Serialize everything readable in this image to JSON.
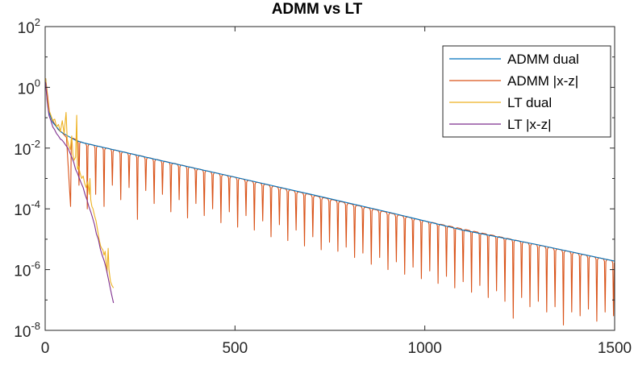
{
  "chart_data": {
    "type": "line",
    "title": "ADMM vs LT",
    "xlabel": "",
    "ylabel": "",
    "xlim": [
      0,
      1500
    ],
    "ylim": [
      1e-08,
      100
    ],
    "yscale": "log",
    "grid": false,
    "legend_position": "top-right",
    "x_ticks": [
      {
        "value": 0,
        "label": "0"
      },
      {
        "value": 500,
        "label": "500"
      },
      {
        "value": 1000,
        "label": "1000"
      },
      {
        "value": 1500,
        "label": "1500"
      }
    ],
    "y_ticks": [
      {
        "value": 100,
        "base": "10",
        "exp": "2"
      },
      {
        "value": 1,
        "base": "10",
        "exp": "0"
      },
      {
        "value": 0.01,
        "base": "10",
        "exp": "-2"
      },
      {
        "value": 0.0001,
        "base": "10",
        "exp": "-4"
      },
      {
        "value": 1e-06,
        "base": "10",
        "exp": "-6"
      },
      {
        "value": 1e-08,
        "base": "10",
        "exp": "-8"
      }
    ],
    "series": [
      {
        "name": "ADMM dual",
        "color": "#0072BD",
        "points": [
          [
            1,
            2.0
          ],
          [
            5,
            0.4
          ],
          [
            10,
            0.15
          ],
          [
            20,
            0.07
          ],
          [
            40,
            0.035
          ],
          [
            60,
            0.025
          ],
          [
            80,
            0.018
          ],
          [
            100,
            0.015
          ],
          [
            300,
            0.004
          ],
          [
            500,
            0.0011
          ],
          [
            700,
            0.0003
          ],
          [
            900,
            8e-05
          ],
          [
            1100,
            2e-05
          ],
          [
            1300,
            6.5e-06
          ],
          [
            1500,
            1.9e-06
          ]
        ]
      },
      {
        "name": "ADMM |x-z|",
        "color": "#D95319",
        "envelope": [
          [
            1,
            2.0
          ],
          [
            10,
            0.15
          ],
          [
            30,
            0.045
          ],
          [
            60,
            0.025
          ],
          [
            100,
            0.015
          ],
          [
            500,
            0.0011
          ],
          [
            1000,
            4e-05
          ],
          [
            1500,
            1.9e-06
          ]
        ],
        "dips": [
          {
            "x": 67,
            "y": 0.00012
          },
          {
            "x": 89,
            "y": 0.0006
          },
          {
            "x": 111,
            "y": 0.0001
          },
          {
            "x": 133,
            "y": 0.0003
          },
          {
            "x": 155,
            "y": 0.00012
          },
          {
            "x": 177,
            "y": 0.0006
          },
          {
            "x": 199,
            "y": 0.0002
          },
          {
            "x": 221,
            "y": 0.0005
          },
          {
            "x": 243,
            "y": 4.5e-05
          },
          {
            "x": 265,
            "y": 0.0004
          },
          {
            "x": 287,
            "y": 0.00015
          },
          {
            "x": 309,
            "y": 0.0003
          },
          {
            "x": 331,
            "y": 8e-05
          },
          {
            "x": 353,
            "y": 0.0002
          },
          {
            "x": 375,
            "y": 5e-05
          },
          {
            "x": 397,
            "y": 0.00015
          },
          {
            "x": 419,
            "y": 6e-05
          },
          {
            "x": 441,
            "y": 0.0001
          },
          {
            "x": 463,
            "y": 3.5e-05
          },
          {
            "x": 485,
            "y": 8e-05
          },
          {
            "x": 507,
            "y": 2.5e-05
          },
          {
            "x": 529,
            "y": 6e-05
          },
          {
            "x": 551,
            "y": 2e-05
          },
          {
            "x": 573,
            "y": 4e-05
          },
          {
            "x": 595,
            "y": 1.2e-05
          },
          {
            "x": 617,
            "y": 3e-05
          },
          {
            "x": 639,
            "y": 9e-06
          },
          {
            "x": 661,
            "y": 2e-05
          },
          {
            "x": 683,
            "y": 6e-06
          },
          {
            "x": 705,
            "y": 1.2e-05
          },
          {
            "x": 727,
            "y": 4.5e-06
          },
          {
            "x": 749,
            "y": 8e-06
          },
          {
            "x": 771,
            "y": 4e-06
          },
          {
            "x": 793,
            "y": 5.5e-06
          },
          {
            "x": 815,
            "y": 2.5e-06
          },
          {
            "x": 837,
            "y": 3.5e-06
          },
          {
            "x": 859,
            "y": 1.5e-06
          },
          {
            "x": 881,
            "y": 2.5e-06
          },
          {
            "x": 903,
            "y": 1e-06
          },
          {
            "x": 925,
            "y": 1.8e-06
          },
          {
            "x": 947,
            "y": 7e-07
          },
          {
            "x": 969,
            "y": 1.2e-06
          },
          {
            "x": 991,
            "y": 5e-07
          },
          {
            "x": 1013,
            "y": 9e-07
          },
          {
            "x": 1035,
            "y": 3.5e-07
          },
          {
            "x": 1057,
            "y": 6e-07
          },
          {
            "x": 1079,
            "y": 2.5e-07
          },
          {
            "x": 1101,
            "y": 4e-07
          },
          {
            "x": 1123,
            "y": 1.8e-07
          },
          {
            "x": 1145,
            "y": 3e-07
          },
          {
            "x": 1167,
            "y": 1.2e-07
          },
          {
            "x": 1189,
            "y": 2e-07
          },
          {
            "x": 1211,
            "y": 9e-08
          },
          {
            "x": 1233,
            "y": 2.5e-08
          },
          {
            "x": 1255,
            "y": 1.2e-07
          },
          {
            "x": 1277,
            "y": 6e-08
          },
          {
            "x": 1299,
            "y": 9e-08
          },
          {
            "x": 1321,
            "y": 4e-08
          },
          {
            "x": 1343,
            "y": 6e-08
          },
          {
            "x": 1365,
            "y": 1.5e-08
          },
          {
            "x": 1387,
            "y": 4e-08
          },
          {
            "x": 1409,
            "y": 3e-08
          },
          {
            "x": 1431,
            "y": 5e-08
          },
          {
            "x": 1453,
            "y": 2e-08
          },
          {
            "x": 1475,
            "y": 4e-08
          },
          {
            "x": 1497,
            "y": 3e-08
          }
        ]
      },
      {
        "name": "LT dual",
        "color": "#EDB120",
        "points": [
          [
            1,
            2.0
          ],
          [
            5,
            0.5
          ],
          [
            10,
            0.18
          ],
          [
            15,
            0.12
          ],
          [
            20,
            0.08
          ],
          [
            25,
            0.09
          ],
          [
            30,
            0.05
          ],
          [
            35,
            0.06
          ],
          [
            40,
            0.035
          ],
          [
            45,
            0.08
          ],
          [
            50,
            0.03
          ],
          [
            55,
            0.15
          ],
          [
            58,
            0.02
          ],
          [
            62,
            0.012
          ],
          [
            66,
            0.009
          ],
          [
            70,
            0.025
          ],
          [
            73,
            0.006
          ],
          [
            76,
            0.004
          ],
          [
            80,
            0.005
          ],
          [
            83,
            0.12
          ],
          [
            85,
            0.002
          ],
          [
            88,
            0.0025
          ],
          [
            92,
            0.0015
          ],
          [
            96,
            0.001
          ],
          [
            100,
            0.0012
          ],
          [
            104,
            0.0007
          ],
          [
            108,
            0.0005
          ],
          [
            112,
            0.0008
          ],
          [
            116,
            0.0003
          ],
          [
            118,
            0.001
          ],
          [
            120,
            0.0002
          ],
          [
            123,
            0.00012
          ],
          [
            126,
            0.0001
          ],
          [
            130,
            6e-05
          ],
          [
            134,
            4e-05
          ],
          [
            138,
            2e-05
          ],
          [
            142,
            1e-05
          ],
          [
            146,
            6e-06
          ],
          [
            149,
            5e-06
          ],
          [
            152,
            4.5e-06
          ],
          [
            155,
            3e-06
          ],
          [
            158,
            4e-06
          ],
          [
            160,
            2e-06
          ],
          [
            163,
            8e-07
          ],
          [
            166,
            5e-06
          ],
          [
            168,
            1e-06
          ],
          [
            172,
            4e-07
          ],
          [
            176,
            3e-07
          ],
          [
            180,
            2.5e-07
          ]
        ]
      },
      {
        "name": "LT |x-z|",
        "color": "#7E2F8E",
        "points": [
          [
            1,
            1.5
          ],
          [
            5,
            0.35
          ],
          [
            10,
            0.12
          ],
          [
            15,
            0.08
          ],
          [
            20,
            0.05
          ],
          [
            25,
            0.04
          ],
          [
            30,
            0.03
          ],
          [
            35,
            0.025
          ],
          [
            40,
            0.02
          ],
          [
            45,
            0.018
          ],
          [
            50,
            0.015
          ],
          [
            55,
            0.012
          ],
          [
            60,
            0.01
          ],
          [
            65,
            0.007
          ],
          [
            70,
            0.005
          ],
          [
            75,
            0.0035
          ],
          [
            80,
            0.002
          ],
          [
            85,
            0.0015
          ],
          [
            90,
            0.001
          ],
          [
            95,
            0.0007
          ],
          [
            100,
            0.0005
          ],
          [
            105,
            0.0003
          ],
          [
            110,
            0.0002
          ],
          [
            115,
            0.00012
          ],
          [
            120,
            8e-05
          ],
          [
            125,
            5e-05
          ],
          [
            130,
            3e-05
          ],
          [
            135,
            1.5e-05
          ],
          [
            140,
            1e-05
          ],
          [
            145,
            5e-06
          ],
          [
            150,
            3e-06
          ],
          [
            155,
            2e-06
          ],
          [
            160,
            1.2e-06
          ],
          [
            165,
            6e-07
          ],
          [
            170,
            3e-07
          ],
          [
            175,
            1.5e-07
          ],
          [
            180,
            8e-08
          ]
        ]
      }
    ]
  }
}
